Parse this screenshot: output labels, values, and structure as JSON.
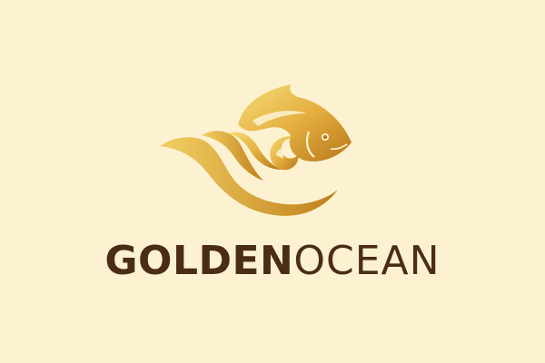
{
  "brand": {
    "name_bold": "GOLDEN",
    "name_light": "OCEAN"
  },
  "icons": {
    "logo": "fish-and-waves-icon"
  },
  "colors": {
    "background": "#fcf2d2",
    "text": "#4a2c17",
    "gold_light": "#f3d36a",
    "gold_dark": "#c8861d"
  }
}
